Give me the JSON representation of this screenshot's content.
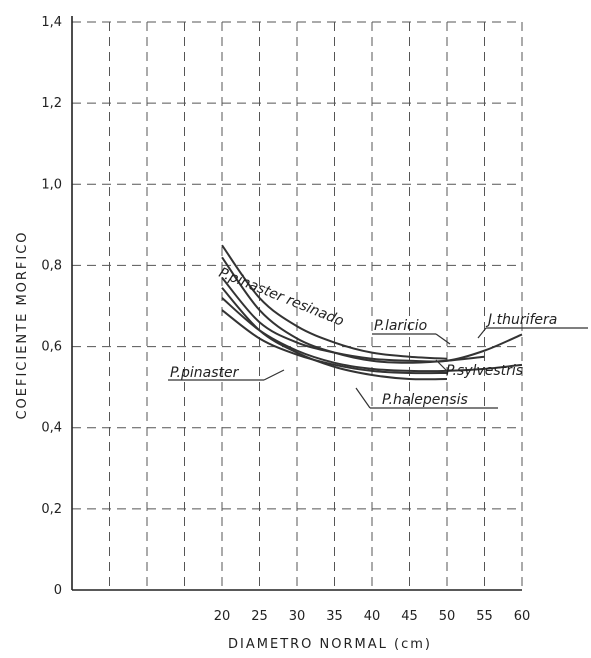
{
  "chart_data": {
    "type": "line",
    "xlabel": "DIAMETRO NORMAL (cm)",
    "ylabel": "COEFICIENTE MORFICO",
    "xlim": [
      0,
      60
    ],
    "ylim": [
      0,
      1.4
    ],
    "x_ticks": [
      20,
      25,
      30,
      35,
      40,
      45,
      50,
      55,
      60
    ],
    "x_tick_labels": [
      "20",
      "25",
      "30",
      "35",
      "40",
      "45",
      "50",
      "55",
      "60"
    ],
    "y_ticks": [
      0,
      0.2,
      0.4,
      0.6,
      0.8,
      1.0,
      1.2,
      1.4
    ],
    "y_tick_labels": [
      "0",
      "0,2",
      "0,4",
      "0,6",
      "0,8",
      "1,0",
      "1,2",
      "1,4"
    ],
    "grid": true,
    "series": [
      {
        "name": "P.pinaster resinado",
        "x": [
          20,
          25,
          30,
          35,
          40,
          45,
          50
        ],
        "y": [
          0.85,
          0.72,
          0.65,
          0.61,
          0.585,
          0.575,
          0.57
        ]
      },
      {
        "name": "P.laricio",
        "x": [
          20,
          25,
          30,
          35,
          40,
          45,
          50,
          55
        ],
        "y": [
          0.82,
          0.69,
          0.62,
          0.585,
          0.565,
          0.56,
          0.565,
          0.575
        ]
      },
      {
        "name": "J.thurifera",
        "x": [
          20,
          25,
          30,
          35,
          40,
          45,
          50,
          55,
          60
        ],
        "y": [
          0.77,
          0.66,
          0.61,
          0.585,
          0.57,
          0.565,
          0.565,
          0.59,
          0.63
        ]
      },
      {
        "name": "P.sylvestris",
        "x": [
          20,
          25,
          30,
          35,
          40,
          45,
          50,
          55,
          60
        ],
        "y": [
          0.72,
          0.64,
          0.59,
          0.56,
          0.545,
          0.54,
          0.54,
          0.545,
          0.555
        ]
      },
      {
        "name": "P.halepensis",
        "x": [
          20,
          25,
          30,
          35,
          40,
          45,
          50
        ],
        "y": [
          0.745,
          0.64,
          0.585,
          0.55,
          0.53,
          0.52,
          0.52
        ]
      },
      {
        "name": "P.pinaster",
        "x": [
          20,
          25,
          30,
          35,
          40,
          45,
          50
        ],
        "y": [
          0.69,
          0.62,
          0.58,
          0.555,
          0.54,
          0.535,
          0.535
        ]
      }
    ],
    "line_color": "#333333"
  }
}
